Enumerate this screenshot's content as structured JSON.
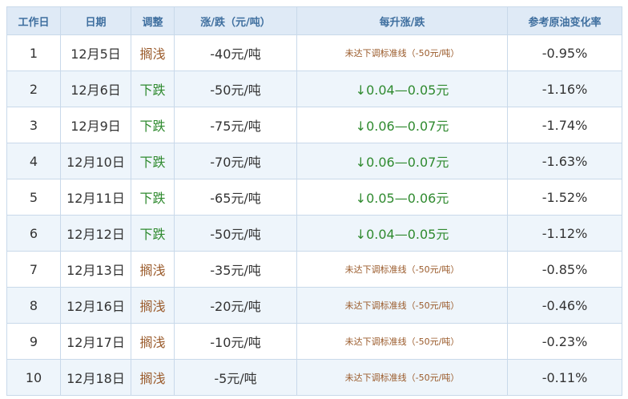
{
  "table": {
    "header": [
      "工作日",
      "日期",
      "调整",
      "涨/跌（元/吨）",
      "每升涨/跌",
      "参考原油变化率"
    ],
    "rows": [
      [
        "1",
        "12月5日",
        "搁浅",
        "-40元/吨",
        "未达下调标准线（-50元/吨）",
        "-0.95%"
      ],
      [
        "2",
        "12月6日",
        "下跌",
        "-50元/吨",
        "↓0.04—0.05元",
        "-1.16%"
      ],
      [
        "3",
        "12月9日",
        "下跌",
        "-75元/吨",
        "↓0.06—0.07元",
        "-1.74%"
      ],
      [
        "4",
        "12月10日",
        "下跌",
        "-70元/吨",
        "↓0.06—0.07元",
        "-1.63%"
      ],
      [
        "5",
        "12月11日",
        "下跌",
        "-65元/吨",
        "↓0.05—0.06元",
        "-1.52%"
      ],
      [
        "6",
        "12月12日",
        "下跌",
        "-50元/吨",
        "↓0.04—0.05元",
        "-1.12%"
      ],
      [
        "7",
        "12月13日",
        "搁浅",
        "-35元/吨",
        "未达下调标准线（-50元/吨）",
        "-0.85%"
      ],
      [
        "8",
        "12月16日",
        "搁浅",
        "-20元/吨",
        "未达下调标准线（-50元/吨）",
        "-0.46%"
      ],
      [
        "9",
        "12月17日",
        "搁浅",
        "-10元/吨",
        "未达下调标准线（-50元/吨）",
        "-0.23%"
      ],
      [
        "10",
        "12月18日",
        "搁浅",
        "-5元/吨",
        "未达下调标准线（-50元/吨）",
        "-0.11%"
      ]
    ],
    "row_colors": [
      "#9a5a2a",
      "#2f8a2f",
      "#2f8a2f",
      "#2f8a2f",
      "#2f8a2f",
      "#2f8a2f",
      "#9a5a2a",
      "#9a5a2a",
      "#9a5a2a",
      "#9a5a2a"
    ]
  }
}
